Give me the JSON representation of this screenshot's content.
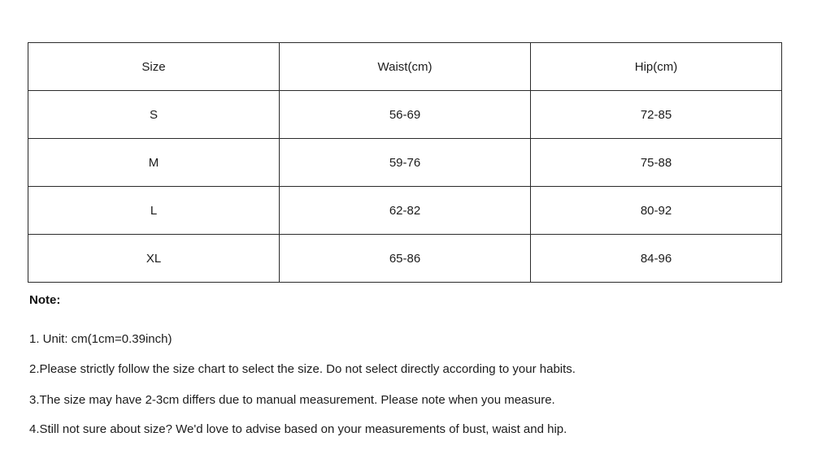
{
  "table": {
    "headers": [
      "Size",
      "Waist(cm)",
      "Hip(cm)"
    ],
    "rows": [
      [
        "S",
        "56-69",
        "72-85"
      ],
      [
        "M",
        "59-76",
        "75-88"
      ],
      [
        "L",
        "62-82",
        "80-92"
      ],
      [
        "XL",
        "65-86",
        "84-96"
      ]
    ]
  },
  "notes": {
    "title": "Note:",
    "items": [
      "1. Unit: cm(1cm=0.39inch)",
      "2.Please strictly follow the size chart to select the size. Do not select directly according to your habits.",
      "3.The size may have 2-3cm differs due to manual measurement. Please note when you measure.",
      "4.Still not sure about size? We'd love to advise based on your measurements of bust, waist and hip."
    ]
  },
  "colors": {
    "background": "#ffffff",
    "text": "#1c1c1c",
    "border": "#2a2a2a"
  }
}
